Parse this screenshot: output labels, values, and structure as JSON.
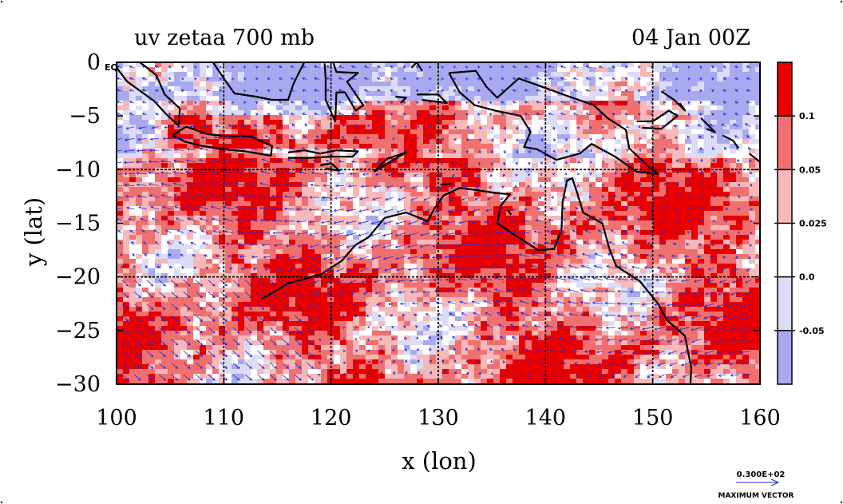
{
  "chart_data": {
    "type": "heatmap",
    "title_left": "uv zetaa 700 mb",
    "title_right": "04 Jan 00Z",
    "xlabel": "x (lon)",
    "ylabel": "y (lat)",
    "xlim": [
      100,
      160
    ],
    "ylim": [
      -30,
      0
    ],
    "x_ticks": [
      100,
      110,
      120,
      130,
      140,
      150,
      160
    ],
    "y_ticks": [
      0,
      -5,
      -10,
      -15,
      -20,
      -25,
      -30
    ],
    "x_tick_labels": [
      "100",
      "110",
      "120",
      "130",
      "140",
      "150",
      "160"
    ],
    "y_tick_labels": [
      "0",
      "−5",
      "−10",
      "−15",
      "−20",
      "−25",
      "−30"
    ],
    "eq_label": "EQ",
    "grid_lon": [
      110,
      120,
      130,
      140,
      150
    ],
    "grid_lat": [
      -10,
      -20
    ],
    "colorbar": {
      "labels": [
        "0.1",
        "0.05",
        "0.025",
        "0.0",
        "-0.05"
      ],
      "colors": [
        "#e60000",
        "#f07070",
        "#f6b8b8",
        "#ffffff",
        "#dcdcf6",
        "#a8aaf0"
      ]
    },
    "vector_key": {
      "label": "0.300E+02",
      "caption": "MAXIMUM VECTOR",
      "magnitude": 30
    },
    "colors": {
      "vector": "#2a2ad0",
      "coast": "#000000",
      "contour": "#d00000"
    }
  }
}
